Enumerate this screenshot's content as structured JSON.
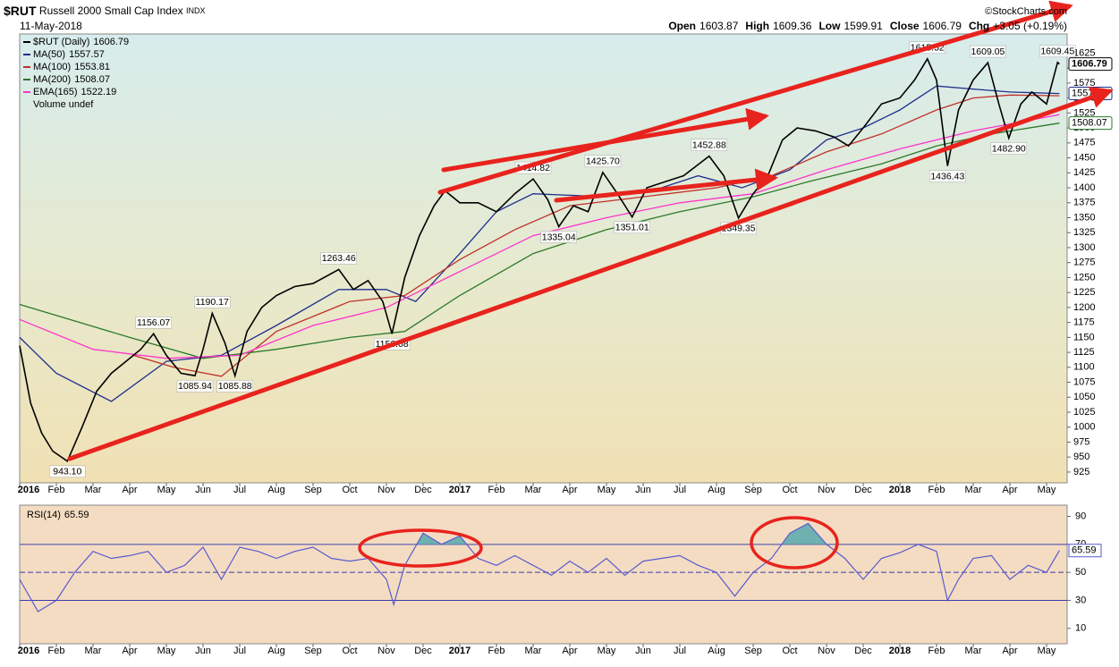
{
  "chart_data": {
    "type": "stock",
    "title": "$RUT",
    "name": "Russell 2000 Small Cap Index",
    "exchange": "INDX",
    "date": "11-May-2018",
    "credit": "©StockCharts.com",
    "quote": [
      {
        "label": "Open",
        "value": 1603.87
      },
      {
        "label": "High",
        "value": 1609.36
      },
      {
        "label": "Low",
        "value": 1599.91
      },
      {
        "label": "Close",
        "value": 1606.79
      },
      {
        "label": "Chg",
        "value": "+3.05 (+0.19%)"
      }
    ],
    "xlim": [
      0,
      28.56
    ],
    "xticks": [
      {
        "value": 0,
        "label": "2016"
      },
      {
        "value": 1,
        "label": "Feb"
      },
      {
        "value": 2,
        "label": "Mar"
      },
      {
        "value": 3,
        "label": "Apr"
      },
      {
        "value": 4,
        "label": "May"
      },
      {
        "value": 5,
        "label": "Jun"
      },
      {
        "value": 6,
        "label": "Jul"
      },
      {
        "value": 7,
        "label": "Aug"
      },
      {
        "value": 8,
        "label": "Sep"
      },
      {
        "value": 9,
        "label": "Oct"
      },
      {
        "value": 10,
        "label": "Nov"
      },
      {
        "value": 11,
        "label": "Dec"
      },
      {
        "value": 12,
        "label": "2017"
      },
      {
        "value": 13,
        "label": "Feb"
      },
      {
        "value": 14,
        "label": "Mar"
      },
      {
        "value": 15,
        "label": "Apr"
      },
      {
        "value": 16,
        "label": "May"
      },
      {
        "value": 17,
        "label": "Jun"
      },
      {
        "value": 18,
        "label": "Jul"
      },
      {
        "value": 19,
        "label": "Aug"
      },
      {
        "value": 20,
        "label": "Sep"
      },
      {
        "value": 21,
        "label": "Oct"
      },
      {
        "value": 22,
        "label": "Nov"
      },
      {
        "value": 23,
        "label": "Dec"
      },
      {
        "value": 24,
        "label": "2018"
      },
      {
        "value": 25,
        "label": "Feb"
      },
      {
        "value": 26,
        "label": "Mar"
      },
      {
        "value": 27,
        "label": "Apr"
      },
      {
        "value": 28,
        "label": "May"
      }
    ],
    "ylim": [
      907,
      1657
    ],
    "yticks": [
      925,
      950,
      975,
      1000,
      1025,
      1050,
      1075,
      1100,
      1125,
      1150,
      1175,
      1200,
      1225,
      1250,
      1275,
      1300,
      1325,
      1350,
      1375,
      1400,
      1425,
      1450,
      1475,
      1500,
      1525,
      1550,
      1575,
      1600,
      1625
    ],
    "series": [
      {
        "name": "$RUT (Daily)",
        "color": "#000000",
        "tag": true,
        "x": [
          0,
          0.3,
          0.6,
          0.9,
          1.3,
          1.7,
          2.1,
          2.5,
          2.9,
          3.3,
          3.65,
          4.0,
          4.4,
          4.78,
          5.0,
          5.25,
          5.6,
          5.87,
          6.2,
          6.6,
          7.0,
          7.5,
          8.0,
          8.7,
          9.1,
          9.5,
          9.9,
          10.15,
          10.5,
          10.9,
          11.3,
          11.6,
          12.0,
          12.5,
          13.0,
          13.5,
          14.0,
          14.4,
          14.7,
          15.1,
          15.5,
          15.9,
          16.3,
          16.7,
          17.1,
          17.6,
          18.1,
          18.8,
          19.2,
          19.6,
          20.0,
          20.4,
          20.8,
          21.2,
          21.7,
          22.2,
          22.6,
          23.0,
          23.5,
          24.0,
          24.4,
          24.75,
          25.0,
          25.3,
          25.6,
          26.0,
          26.4,
          26.7,
          26.97,
          27.3,
          27.6,
          28.0,
          28.3,
          28.35
        ],
        "values": [
          1136,
          1040,
          990,
          960,
          943.1,
          1000,
          1060,
          1090,
          1110,
          1130,
          1156.07,
          1120,
          1090,
          1085.94,
          1130,
          1190.17,
          1140,
          1085.88,
          1160,
          1200,
          1220,
          1235,
          1240,
          1263.46,
          1230,
          1245,
          1210,
          1156.08,
          1250,
          1320,
          1370,
          1395,
          1375,
          1375,
          1360,
          1390,
          1414.82,
          1380,
          1335.04,
          1370,
          1360,
          1425.7,
          1390,
          1351.01,
          1400,
          1410,
          1420,
          1452.88,
          1420,
          1349.35,
          1390,
          1420,
          1480,
          1500,
          1495,
          1485,
          1470,
          1500,
          1540,
          1550,
          1580,
          1615.52,
          1580,
          1436.43,
          1530,
          1580,
          1609.05,
          1540,
          1482.9,
          1540,
          1560,
          1540,
          1609.45,
          1606.79
        ]
      },
      {
        "name": "MA(50)",
        "color": "#1f2f8f",
        "tag": true,
        "x": [
          0,
          1,
          2.5,
          4,
          5.5,
          7,
          8.7,
          10,
          10.8,
          12,
          13,
          14,
          16,
          17.5,
          18.5,
          19.7,
          21,
          22,
          23,
          24,
          25,
          26,
          27,
          28.35
        ],
        "values": [
          1150,
          1090,
          1043,
          1110,
          1120,
          1170,
          1230,
          1230,
          1210,
          1290,
          1360,
          1390,
          1385,
          1400,
          1420,
          1400,
          1430,
          1480,
          1500,
          1530,
          1570,
          1565,
          1560,
          1557.57
        ]
      },
      {
        "name": "MA(100)",
        "color": "#c0302a",
        "tag": false,
        "x": [
          3.1,
          4.2,
          5.5,
          7,
          9,
          10.5,
          12,
          13.5,
          15,
          17,
          19,
          20.5,
          22,
          23.5,
          25,
          26,
          27,
          28.35
        ],
        "values": [
          1120,
          1100,
          1085,
          1160,
          1210,
          1220,
          1280,
          1330,
          1370,
          1385,
          1400,
          1420,
          1460,
          1490,
          1530,
          1550,
          1555,
          1553.81
        ]
      },
      {
        "name": "MA(200)",
        "color": "#2a7a2a",
        "tag": true,
        "x": [
          0,
          3,
          5,
          7,
          9,
          10.5,
          12,
          14,
          16,
          18,
          20,
          21.5,
          23.5,
          25,
          26.5,
          28.35
        ],
        "values": [
          1205,
          1150,
          1115,
          1130,
          1150,
          1160,
          1220,
          1290,
          1330,
          1360,
          1385,
          1410,
          1440,
          1470,
          1490,
          1508.07
        ]
      },
      {
        "name": "EMA(165)",
        "color": "#ff33cc",
        "tag": false,
        "x": [
          0,
          2,
          4,
          6,
          8,
          10,
          12,
          14,
          16,
          18,
          20,
          22,
          24,
          26,
          28.35
        ],
        "values": [
          1180,
          1130,
          1115,
          1120,
          1170,
          1200,
          1260,
          1320,
          1350,
          1375,
          1390,
          1430,
          1465,
          1495,
          1522.19
        ]
      }
    ],
    "volume_label": "Volume undef",
    "annotations": [
      {
        "x": 1.3,
        "value": 943.1,
        "label": "943.10"
      },
      {
        "x": 3.65,
        "value": 1156.07,
        "label": "1156.07"
      },
      {
        "x": 4.78,
        "value": 1085.94,
        "label": "1085.94"
      },
      {
        "x": 5.25,
        "value": 1190.17,
        "label": "1190.17"
      },
      {
        "x": 5.87,
        "value": 1085.88,
        "label": "1085.88"
      },
      {
        "x": 8.7,
        "value": 1263.46,
        "label": "1263.46"
      },
      {
        "x": 10.15,
        "value": 1156.08,
        "label": "1156.08"
      },
      {
        "x": 14.0,
        "value": 1414.82,
        "label": "1414.82"
      },
      {
        "x": 14.7,
        "value": 1335.04,
        "label": "1335.04"
      },
      {
        "x": 15.9,
        "value": 1425.7,
        "label": "1425.70"
      },
      {
        "x": 16.7,
        "value": 1351.01,
        "label": "1351.01"
      },
      {
        "x": 18.8,
        "value": 1452.88,
        "label": "1452.88"
      },
      {
        "x": 19.6,
        "value": 1349.35,
        "label": "1349.35"
      },
      {
        "x": 24.75,
        "value": 1615.52,
        "label": "1615.52"
      },
      {
        "x": 25.3,
        "value": 1436.43,
        "label": "1436.43"
      },
      {
        "x": 26.4,
        "value": 1609.05,
        "label": "1609.05"
      },
      {
        "x": 26.97,
        "value": 1482.9,
        "label": "1482.90"
      },
      {
        "x": 28.3,
        "value": 1609.45,
        "label": "1609.45"
      }
    ],
    "rsi": {
      "name": "RSI(14)",
      "color": "#5a5acf",
      "fill": "#6fb0b0",
      "ylim": [
        -1,
        98
      ],
      "yticks": [
        10,
        30,
        50,
        70,
        90
      ],
      "levels": [
        30,
        50,
        70
      ],
      "x": [
        0,
        0.5,
        1,
        1.5,
        2,
        2.5,
        3,
        3.5,
        4,
        4.5,
        5,
        5.5,
        6,
        6.5,
        7,
        7.5,
        8,
        8.5,
        9,
        9.5,
        10,
        10.2,
        10.5,
        11,
        11.5,
        12,
        12.5,
        13,
        13.5,
        14,
        14.5,
        15,
        15.5,
        16,
        16.5,
        17,
        17.5,
        18,
        18.5,
        19,
        19.5,
        20,
        20.5,
        21,
        21.5,
        22,
        22.5,
        23,
        23.5,
        24,
        24.5,
        25,
        25.3,
        25.6,
        26,
        26.5,
        27,
        27.5,
        28,
        28.35
      ],
      "values": [
        45,
        22,
        30,
        50,
        65,
        60,
        62,
        65,
        50,
        55,
        68,
        45,
        68,
        65,
        60,
        65,
        68,
        60,
        58,
        60,
        45,
        27,
        55,
        78,
        70,
        76,
        60,
        55,
        62,
        55,
        48,
        58,
        50,
        60,
        48,
        58,
        60,
        62,
        55,
        50,
        33,
        50,
        60,
        78,
        85,
        70,
        60,
        45,
        60,
        64,
        70,
        65,
        30,
        45,
        60,
        62,
        45,
        55,
        50,
        65.59
      ]
    }
  }
}
